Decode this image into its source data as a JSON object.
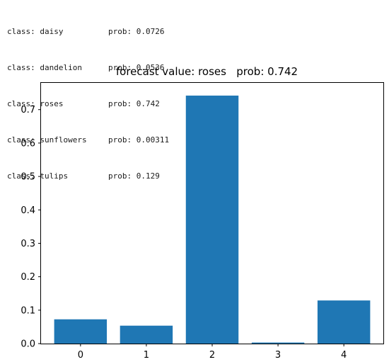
{
  "output_log": [
    {
      "class_text": "class: daisy",
      "prob_text": "prob: 0.0726"
    },
    {
      "class_text": "class: dandelion",
      "prob_text": "prob: 0.0536"
    },
    {
      "class_text": "class: roses",
      "prob_text": "prob: 0.742"
    },
    {
      "class_text": "class: sunflowers",
      "prob_text": "prob: 0.00311"
    },
    {
      "class_text": "class: tulips",
      "prob_text": "prob: 0.129"
    }
  ],
  "chart_data": {
    "type": "bar",
    "title": "forecast value: roses   prob: 0.742",
    "xlabel": "",
    "ylabel": "",
    "categories": [
      "0",
      "1",
      "2",
      "3",
      "4"
    ],
    "values": [
      0.0726,
      0.0536,
      0.742,
      0.00311,
      0.129
    ],
    "ylim": [
      0,
      0.78
    ],
    "yticks": [
      "0.0",
      "0.1",
      "0.2",
      "0.3",
      "0.4",
      "0.5",
      "0.6",
      "0.7"
    ],
    "grid": false,
    "legend": "none",
    "bar_color": "#1f77b4"
  }
}
